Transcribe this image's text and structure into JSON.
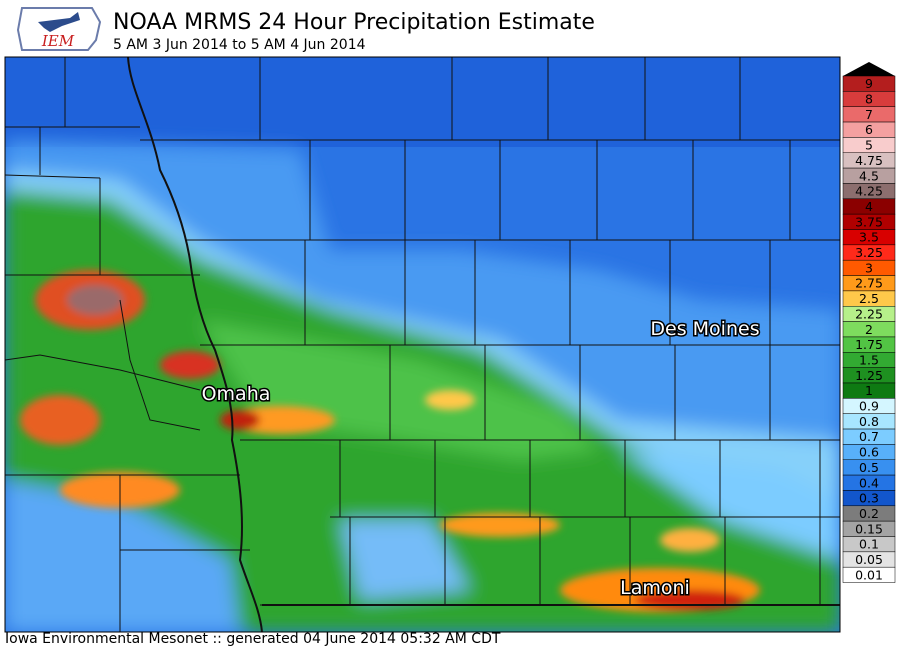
{
  "header": {
    "logo_text": "IEM",
    "title": "NOAA MRMS 24 Hour Precipitation Estimate",
    "subtitle": "5 AM 3 Jun 2014 to 5 AM 4 Jun 2014"
  },
  "cities": [
    {
      "label": "Des Moines"
    },
    {
      "label": "Omaha"
    },
    {
      "label": "Lamoni"
    }
  ],
  "legend": {
    "values": [
      9,
      8,
      7,
      6,
      5,
      4.75,
      4.5,
      4.25,
      4,
      3.75,
      3.5,
      3.25,
      3,
      2.75,
      2.5,
      2.25,
      2,
      1.75,
      1.5,
      1.25,
      1,
      0.9,
      0.8,
      0.7,
      0.6,
      0.5,
      0.4,
      0.3,
      0.2,
      0.15,
      0.1,
      0.05,
      0.01
    ],
    "colors": [
      "#b41e1e",
      "#d83c3c",
      "#ea6a6a",
      "#f4a0a0",
      "#f8cccc",
      "#d8c0c0",
      "#b8a0a0",
      "#8c6e6e",
      "#8b0000",
      "#b00000",
      "#d80000",
      "#ff2a1a",
      "#ff5a00",
      "#ff9a1a",
      "#ffc84a",
      "#b6f08a",
      "#7edc5e",
      "#52c444",
      "#32aa32",
      "#1e9020",
      "#0e7a12",
      "#d4f6ff",
      "#a8e6ff",
      "#7cccff",
      "#58b0fa",
      "#3890f0",
      "#2474e4",
      "#1256cc",
      "#7c7c7c",
      "#a4a4a4",
      "#c8c8c8",
      "#e4e4e4",
      "#ffffff"
    ]
  },
  "footer": "Iowa Environmental Mesonet :: generated 04 June 2014 05:32 AM CDT"
}
